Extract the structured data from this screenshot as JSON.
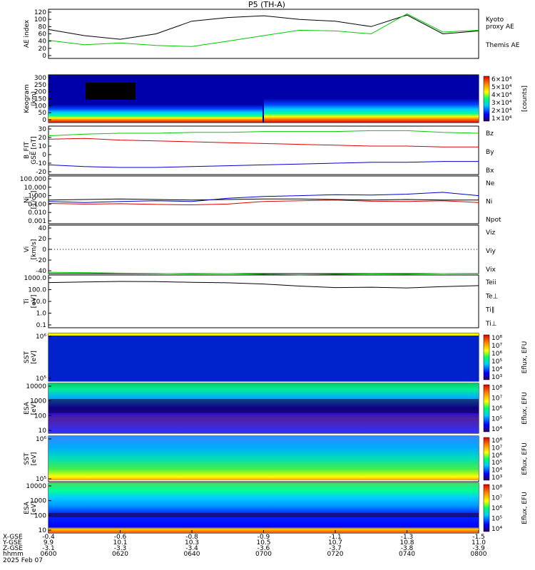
{
  "figure": {
    "title": "P5 (TH-A)",
    "date_label": "2025 Feb 07",
    "colors": {
      "black": "#000000",
      "green": "#00cc00",
      "red": "#dd0000",
      "blue": "#0000cc",
      "gold": "#c8b400"
    }
  },
  "chart_data": [
    {
      "id": "ae",
      "type": "line",
      "ylabel": "AE index",
      "ylim": [
        0,
        120
      ],
      "yticks": [
        "120",
        "100",
        "80",
        "60",
        "40",
        "20",
        "0"
      ],
      "legend": [
        "Kyoto",
        "proxy AE",
        "Themis AE"
      ],
      "x": [
        0,
        10,
        20,
        30,
        40,
        50,
        60,
        70,
        80,
        90,
        100,
        110,
        120
      ],
      "series": [
        {
          "name": "Themis AE",
          "color": "#000000",
          "values": [
            72,
            55,
            45,
            60,
            95,
            105,
            110,
            100,
            95,
            80,
            112,
            60,
            68
          ]
        },
        {
          "name": "Kyoto proxy AE",
          "color": "#00cc00",
          "values": [
            42,
            30,
            35,
            28,
            25,
            40,
            55,
            70,
            68,
            60,
            115,
            65,
            70
          ]
        }
      ]
    },
    {
      "id": "keogram",
      "type": "heatmap",
      "ylabel": "Keogram",
      "yunit": "(km)",
      "ylim": [
        0,
        300
      ],
      "yticks": [
        "300",
        "250",
        "200",
        "150",
        "100",
        "50",
        "0"
      ],
      "colorbar": {
        "label": "[counts]",
        "ticks": [
          "6×10⁴",
          "5×10⁴",
          "4×10⁴",
          "3×10⁴",
          "2×10⁴",
          "1×10⁴"
        ]
      }
    },
    {
      "id": "bfield",
      "type": "line",
      "ylabel": "B_FIT",
      "yunit": "GSE [nT]",
      "ylim": [
        -20,
        30
      ],
      "yticks": [
        "30",
        "20",
        "10",
        "0",
        "-10",
        "-20"
      ],
      "series": [
        {
          "name": "Bz",
          "color": "#dd0000",
          "values": [
            18,
            19,
            17,
            16,
            15,
            14,
            13,
            12,
            11,
            10,
            10,
            9,
            9
          ]
        },
        {
          "name": "By",
          "color": "#00cc00",
          "values": [
            22,
            24,
            25,
            25,
            26,
            26,
            27,
            27,
            27,
            28,
            28,
            26,
            25
          ]
        },
        {
          "name": "Bx",
          "color": "#0000cc",
          "values": [
            -12,
            -14,
            -15,
            -15,
            -14,
            -13,
            -12,
            -11,
            -10,
            -9,
            -9,
            -8,
            -8
          ]
        }
      ]
    },
    {
      "id": "density",
      "type": "line",
      "ylabel": "Ni",
      "yunit": "[1/cc]",
      "yticks": [
        "100.000",
        "10.000",
        "1.000",
        "0.100",
        "0.010",
        "0.001"
      ],
      "series": [
        {
          "name": "Ne",
          "color": "#dd0000",
          "values": [
            0.12,
            0.1,
            0.11,
            0.09,
            0.08,
            0.1,
            0.2,
            0.25,
            0.3,
            0.22,
            0.2,
            0.25,
            0.15
          ]
        },
        {
          "name": "Ni",
          "color": "#000000",
          "values": [
            0.3,
            0.35,
            0.4,
            0.35,
            0.3,
            0.35,
            0.4,
            0.4,
            0.35,
            0.3,
            0.35,
            0.3,
            0.3
          ]
        },
        {
          "name": "Npot",
          "color": "#0000cc",
          "values": [
            0.2,
            0.15,
            0.2,
            0.25,
            0.2,
            0.5,
            0.8,
            1.0,
            1.3,
            1.2,
            1.5,
            2.5,
            1.0
          ]
        }
      ]
    },
    {
      "id": "velocity",
      "type": "line",
      "ylabel": "Vi",
      "yunit": "[km/s]",
      "ylim": [
        -50,
        50
      ],
      "yticks": [
        "40",
        "20",
        "0",
        "-20",
        "-40"
      ],
      "legend": [
        "Viz",
        "Viy",
        "Vix"
      ]
    },
    {
      "id": "temperature",
      "type": "line",
      "ylabel": "Ti",
      "yunit": "[eV]",
      "yticks": [
        "1000.0",
        "100.0",
        "10.0",
        "1.0",
        "0.1"
      ],
      "series": [
        {
          "name": "Teii",
          "color": "#000000",
          "values": [
            400,
            450,
            500,
            480,
            420,
            380,
            300,
            200,
            150,
            160,
            140,
            180,
            220
          ]
        },
        {
          "name": "Ti∥",
          "color": "#00cc00",
          "values": [
            3000,
            2800,
            2500,
            2400,
            2200,
            2300,
            2000,
            1800,
            2000,
            2200,
            2100,
            2300,
            2400
          ]
        }
      ],
      "legend": [
        "Teii",
        "Te⊥",
        "Ti∥",
        "Ti⊥"
      ]
    },
    {
      "id": "sst_i",
      "type": "heatmap",
      "ylabel": "SST",
      "yunit": "[eV]",
      "yticks": [
        "10⁶",
        "10⁵"
      ],
      "colorbar": {
        "label": "Eflux, EFU",
        "ticks": [
          "10⁸",
          "10⁷",
          "10⁶",
          "10⁵",
          "10⁴",
          "10³"
        ]
      }
    },
    {
      "id": "esa_i",
      "type": "heatmap",
      "ylabel": "ESA",
      "yunit": "[eV]",
      "yticks": [
        "10000",
        "1000",
        "100",
        "10"
      ],
      "colorbar": {
        "label": "Eflux, EFU",
        "ticks": [
          "10⁸",
          "10⁷",
          "10⁶",
          "10⁵",
          "10⁴"
        ]
      }
    },
    {
      "id": "sst_e",
      "type": "heatmap",
      "ylabel": "SST",
      "yunit": "[eV]",
      "yticks": [
        "10⁶",
        "10⁵"
      ],
      "colorbar": {
        "label": "Eflux, EFU",
        "ticks": [
          "10⁸",
          "10⁷",
          "10⁶",
          "10⁵",
          "10⁴",
          "10³"
        ]
      }
    },
    {
      "id": "esa_e",
      "type": "heatmap",
      "ylabel": "ESA",
      "yunit": "[eV]",
      "yticks": [
        "10000",
        "1000",
        "100",
        "10"
      ],
      "colorbar": {
        "label": "Eflux, EFU",
        "ticks": [
          "10⁸",
          "10⁷",
          "10⁶",
          "10⁵",
          "10⁴"
        ]
      }
    }
  ],
  "time_axis": {
    "row_labels": [
      "X-GSE",
      "Y-GSE",
      "Z-GSE",
      "hhmm",
      "2025 Feb 07"
    ],
    "ticks": [
      {
        "x": "-0.4",
        "y": "9.9",
        "z": "-3.1",
        "t": "0600"
      },
      {
        "x": "-0.6",
        "y": "10.1",
        "z": "-3.3",
        "t": "0620"
      },
      {
        "x": "-0.8",
        "y": "10.3",
        "z": "-3.4",
        "t": "0640"
      },
      {
        "x": "-0.9",
        "y": "10.5",
        "z": "-3.6",
        "t": "0700"
      },
      {
        "x": "-1.1",
        "y": "10.7",
        "z": "-3.7",
        "t": "0720"
      },
      {
        "x": "-1.3",
        "y": "10.8",
        "z": "-3.8",
        "t": "0740"
      },
      {
        "x": "-1.5",
        "y": "11.0",
        "z": "-3.9",
        "t": "0800"
      }
    ]
  }
}
